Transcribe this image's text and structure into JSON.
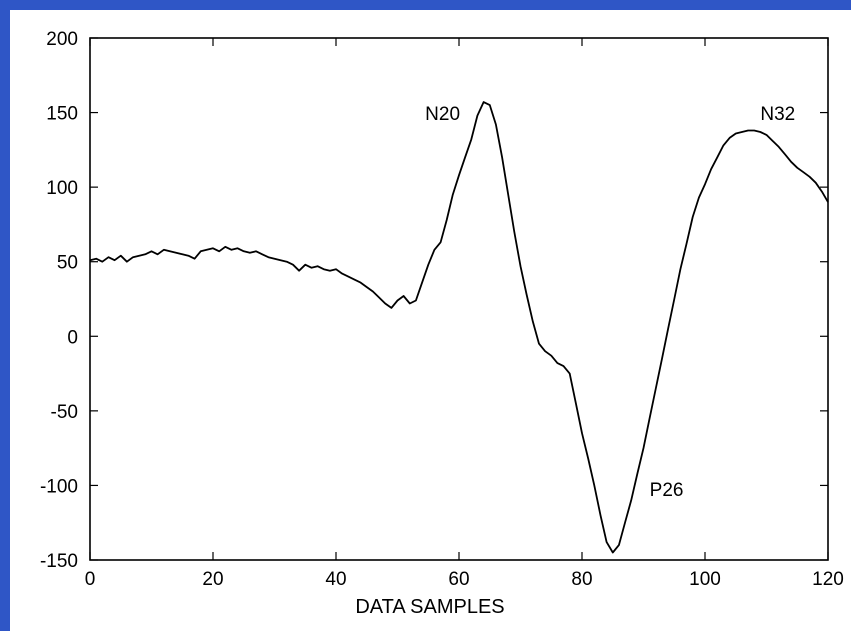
{
  "colors": {
    "background": "#2f56c6",
    "panel": "#ffffff",
    "ink": "#000000"
  },
  "chart_data": {
    "type": "line",
    "title": "",
    "xlabel": "DATA SAMPLES",
    "ylabel": "",
    "xlim": [
      0,
      120
    ],
    "ylim": [
      -150,
      200
    ],
    "xticks": [
      0,
      20,
      40,
      60,
      80,
      100,
      120
    ],
    "yticks": [
      200,
      150,
      100,
      50,
      0,
      -50,
      -100,
      -150
    ],
    "grid": false,
    "series": [
      {
        "x": [
          0,
          1,
          2,
          3,
          4,
          5,
          6,
          7,
          8,
          9,
          10,
          11,
          12,
          13,
          14,
          15,
          16,
          17,
          18,
          19,
          20,
          21,
          22,
          23,
          24,
          25,
          26,
          27,
          28,
          29,
          30,
          31,
          32,
          33,
          34,
          35,
          36,
          37,
          38,
          39,
          40,
          41,
          42,
          43,
          44,
          45,
          46,
          47,
          48,
          49,
          50,
          51,
          52,
          53,
          54,
          55,
          56,
          57,
          58,
          59,
          60,
          61,
          62,
          63,
          64,
          65,
          66,
          67,
          68,
          69,
          70,
          71,
          72,
          73,
          74,
          75,
          76,
          77,
          78,
          79,
          80,
          81,
          82,
          83,
          84,
          85,
          86,
          87,
          88,
          89,
          90,
          91,
          92,
          93,
          94,
          95,
          96,
          97,
          98,
          99,
          100,
          101,
          102,
          103,
          104,
          105,
          106,
          107,
          108,
          109,
          110,
          111,
          112,
          113,
          114,
          115,
          116,
          117,
          118,
          119,
          120
        ],
        "y": [
          51,
          52,
          50,
          53,
          51,
          54,
          50,
          53,
          54,
          55,
          57,
          55,
          58,
          57,
          56,
          55,
          54,
          52,
          57,
          58,
          59,
          57,
          60,
          58,
          59,
          57,
          56,
          57,
          55,
          53,
          52,
          51,
          50,
          48,
          44,
          48,
          46,
          47,
          45,
          44,
          45,
          42,
          40,
          38,
          36,
          33,
          30,
          26,
          22,
          19,
          24,
          27,
          22,
          24,
          36,
          48,
          58,
          63,
          78,
          95,
          108,
          120,
          132,
          148,
          157,
          155,
          142,
          120,
          95,
          70,
          47,
          28,
          10,
          -5,
          -10,
          -13,
          -18,
          -20,
          -25,
          -45,
          -65,
          -82,
          -100,
          -120,
          -138,
          -145,
          -140,
          -125,
          -110,
          -92,
          -75,
          -55,
          -35,
          -15,
          5,
          25,
          45,
          62,
          80,
          93,
          102,
          112,
          120,
          128,
          133,
          136,
          137,
          138,
          138,
          137,
          135,
          131,
          127,
          122,
          117,
          113,
          110,
          107,
          103,
          97,
          90
        ]
      }
    ],
    "annotations": [
      {
        "text": "N20",
        "x": 54.5,
        "y": 145
      },
      {
        "text": "N32",
        "x": 109,
        "y": 145
      },
      {
        "text": "P26",
        "x": 91,
        "y": -107
      }
    ]
  }
}
